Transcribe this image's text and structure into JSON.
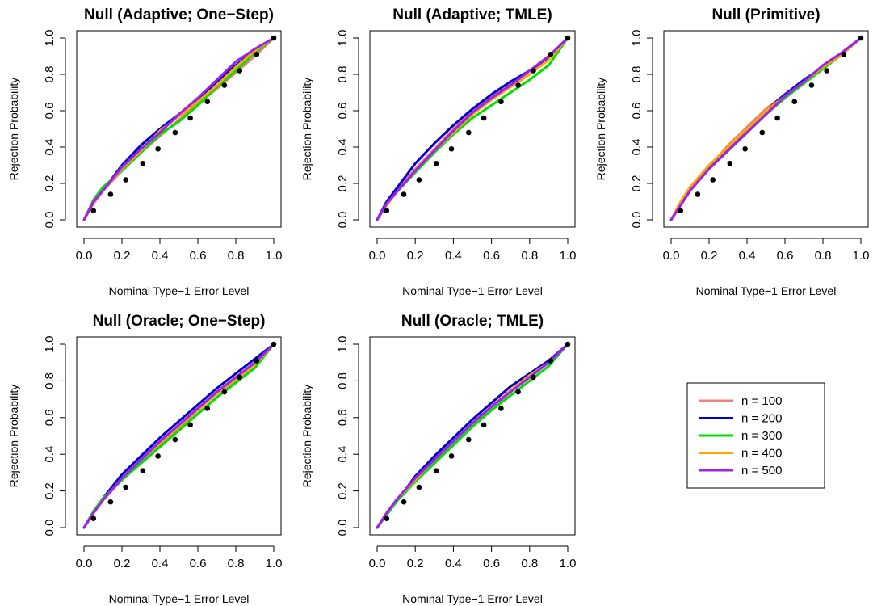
{
  "figure": {
    "title": "",
    "legend": {
      "placement": "bottom-right (empty sixth panel)",
      "entries": [
        {
          "label": "n = 100",
          "color": "#F08080"
        },
        {
          "label": "n = 200",
          "color": "#0000CD"
        },
        {
          "label": "n = 300",
          "color": "#00E000"
        },
        {
          "label": "n = 400",
          "color": "#FFA500"
        },
        {
          "label": "n = 500",
          "color": "#A020F0"
        }
      ]
    },
    "reference_points": {
      "x": [
        0.05,
        0.14,
        0.22,
        0.31,
        0.39,
        0.48,
        0.56,
        0.65,
        0.74,
        0.82,
        0.91,
        1.0
      ],
      "y": [
        0.05,
        0.14,
        0.22,
        0.31,
        0.39,
        0.48,
        0.56,
        0.65,
        0.74,
        0.82,
        0.91,
        1.0
      ],
      "color": "#000000"
    }
  },
  "chart_data": [
    {
      "type": "line",
      "title": "Null (Adaptive; One−Step)",
      "xlabel": "Nominal Type−1 Error Level",
      "ylabel": "Rejection Probability",
      "xlim": [
        0,
        1
      ],
      "ylim": [
        0,
        1
      ],
      "xticks": [
        "0.0",
        "0.2",
        "0.4",
        "0.6",
        "0.8",
        "1.0"
      ],
      "yticks": [
        "0.0",
        "0.2",
        "0.4",
        "0.6",
        "0.8",
        "1.0"
      ],
      "grid": false,
      "x": [
        0,
        0.05,
        0.1,
        0.2,
        0.3,
        0.4,
        0.5,
        0.6,
        0.7,
        0.8,
        0.9,
        1.0
      ],
      "series": [
        {
          "name": "n = 100",
          "color": "#F08080",
          "values": [
            0,
            0.09,
            0.16,
            0.27,
            0.37,
            0.46,
            0.55,
            0.64,
            0.72,
            0.81,
            0.9,
            1.0
          ]
        },
        {
          "name": "n = 200",
          "color": "#0000CD",
          "values": [
            0,
            0.1,
            0.16,
            0.3,
            0.41,
            0.5,
            0.58,
            0.66,
            0.76,
            0.85,
            0.93,
            1.0
          ]
        },
        {
          "name": "n = 300",
          "color": "#00E000",
          "values": [
            0,
            0.11,
            0.18,
            0.27,
            0.37,
            0.47,
            0.54,
            0.63,
            0.73,
            0.82,
            0.92,
            1.0
          ]
        },
        {
          "name": "n = 400",
          "color": "#FFA500",
          "values": [
            0,
            0.1,
            0.16,
            0.28,
            0.38,
            0.49,
            0.57,
            0.65,
            0.74,
            0.84,
            0.93,
            1.0
          ]
        },
        {
          "name": "n = 500",
          "color": "#A020F0",
          "values": [
            0,
            0.1,
            0.16,
            0.29,
            0.39,
            0.48,
            0.58,
            0.67,
            0.77,
            0.87,
            0.94,
            1.0
          ]
        }
      ]
    },
    {
      "type": "line",
      "title": "Null (Adaptive; TMLE)",
      "xlabel": "Nominal Type−1 Error Level",
      "ylabel": "Rejection Probability",
      "xlim": [
        0,
        1
      ],
      "ylim": [
        0,
        1
      ],
      "xticks": [
        "0.0",
        "0.2",
        "0.4",
        "0.6",
        "0.8",
        "1.0"
      ],
      "yticks": [
        "0.0",
        "0.2",
        "0.4",
        "0.6",
        "0.8",
        "1.0"
      ],
      "grid": false,
      "x": [
        0,
        0.05,
        0.1,
        0.2,
        0.3,
        0.4,
        0.5,
        0.6,
        0.7,
        0.8,
        0.9,
        1.0
      ],
      "series": [
        {
          "name": "n = 100",
          "color": "#F08080",
          "values": [
            0,
            0.09,
            0.16,
            0.28,
            0.39,
            0.5,
            0.6,
            0.68,
            0.75,
            0.82,
            0.89,
            1.0
          ]
        },
        {
          "name": "n = 200",
          "color": "#0000CD",
          "values": [
            0,
            0.1,
            0.17,
            0.31,
            0.42,
            0.52,
            0.61,
            0.69,
            0.76,
            0.82,
            0.89,
            1.0
          ]
        },
        {
          "name": "n = 300",
          "color": "#00E000",
          "values": [
            0,
            0.08,
            0.15,
            0.26,
            0.37,
            0.47,
            0.56,
            0.63,
            0.7,
            0.77,
            0.85,
            1.0
          ]
        },
        {
          "name": "n = 400",
          "color": "#FFA500",
          "values": [
            0,
            0.08,
            0.15,
            0.27,
            0.38,
            0.48,
            0.58,
            0.66,
            0.73,
            0.8,
            0.88,
            1.0
          ]
        },
        {
          "name": "n = 500",
          "color": "#A020F0",
          "values": [
            0,
            0.09,
            0.15,
            0.27,
            0.38,
            0.49,
            0.59,
            0.67,
            0.74,
            0.82,
            0.9,
            1.0
          ]
        }
      ]
    },
    {
      "type": "line",
      "title": "Null (Primitive)",
      "xlabel": "Nominal Type−1 Error Level",
      "ylabel": "Rejection Probability",
      "xlim": [
        0,
        1
      ],
      "ylim": [
        0,
        1
      ],
      "xticks": [
        "0.0",
        "0.2",
        "0.4",
        "0.6",
        "0.8",
        "1.0"
      ],
      "yticks": [
        "0.0",
        "0.2",
        "0.4",
        "0.6",
        "0.8",
        "1.0"
      ],
      "grid": false,
      "x": [
        0,
        0.05,
        0.1,
        0.2,
        0.3,
        0.4,
        0.5,
        0.6,
        0.7,
        0.8,
        0.9,
        1.0
      ],
      "series": [
        {
          "name": "n = 100",
          "color": "#F08080",
          "values": [
            0,
            0.09,
            0.17,
            0.29,
            0.41,
            0.51,
            0.61,
            0.69,
            0.77,
            0.84,
            0.91,
            1.0
          ]
        },
        {
          "name": "n = 200",
          "color": "#0000CD",
          "values": [
            0,
            0.09,
            0.17,
            0.29,
            0.39,
            0.5,
            0.6,
            0.69,
            0.77,
            0.84,
            0.91,
            1.0
          ]
        },
        {
          "name": "n = 300",
          "color": "#00E000",
          "values": [
            0,
            0.08,
            0.16,
            0.28,
            0.38,
            0.48,
            0.58,
            0.67,
            0.75,
            0.83,
            0.91,
            1.0
          ]
        },
        {
          "name": "n = 400",
          "color": "#FFA500",
          "values": [
            0,
            0.1,
            0.18,
            0.3,
            0.4,
            0.5,
            0.6,
            0.68,
            0.76,
            0.84,
            0.91,
            1.0
          ]
        },
        {
          "name": "n = 500",
          "color": "#A020F0",
          "values": [
            0,
            0.08,
            0.16,
            0.28,
            0.38,
            0.48,
            0.58,
            0.68,
            0.76,
            0.85,
            0.92,
            1.0
          ]
        }
      ]
    },
    {
      "type": "line",
      "title": "Null (Oracle; One−Step)",
      "xlabel": "Nominal Type−1 Error Level",
      "ylabel": "Rejection Probability",
      "xlim": [
        0,
        1
      ],
      "ylim": [
        0,
        1
      ],
      "xticks": [
        "0.0",
        "0.2",
        "0.4",
        "0.6",
        "0.8",
        "1.0"
      ],
      "yticks": [
        "0.0",
        "0.2",
        "0.4",
        "0.6",
        "0.8",
        "1.0"
      ],
      "grid": false,
      "x": [
        0,
        0.05,
        0.1,
        0.2,
        0.3,
        0.4,
        0.5,
        0.6,
        0.7,
        0.8,
        0.9,
        1.0
      ],
      "series": [
        {
          "name": "n = 100",
          "color": "#F08080",
          "values": [
            0,
            0.08,
            0.15,
            0.26,
            0.36,
            0.45,
            0.54,
            0.62,
            0.71,
            0.8,
            0.89,
            1.0
          ]
        },
        {
          "name": "n = 200",
          "color": "#0000CD",
          "values": [
            0,
            0.08,
            0.16,
            0.29,
            0.39,
            0.49,
            0.58,
            0.67,
            0.76,
            0.84,
            0.92,
            1.0
          ]
        },
        {
          "name": "n = 300",
          "color": "#00E000",
          "values": [
            0,
            0.09,
            0.16,
            0.26,
            0.35,
            0.44,
            0.53,
            0.62,
            0.71,
            0.79,
            0.87,
            1.0
          ]
        },
        {
          "name": "n = 400",
          "color": "#FFA500",
          "values": [
            0,
            0.08,
            0.15,
            0.27,
            0.37,
            0.46,
            0.55,
            0.64,
            0.73,
            0.81,
            0.89,
            1.0
          ]
        },
        {
          "name": "n = 500",
          "color": "#A020F0",
          "values": [
            0,
            0.08,
            0.15,
            0.27,
            0.37,
            0.47,
            0.56,
            0.65,
            0.74,
            0.82,
            0.9,
            1.0
          ]
        }
      ]
    },
    {
      "type": "line",
      "title": "Null (Oracle; TMLE)",
      "xlabel": "Nominal Type−1 Error Level",
      "ylabel": "Rejection Probability",
      "xlim": [
        0,
        1
      ],
      "ylim": [
        0,
        1
      ],
      "xticks": [
        "0.0",
        "0.2",
        "0.4",
        "0.6",
        "0.8",
        "1.0"
      ],
      "yticks": [
        "0.0",
        "0.2",
        "0.4",
        "0.6",
        "0.8",
        "1.0"
      ],
      "grid": false,
      "x": [
        0,
        0.05,
        0.1,
        0.2,
        0.3,
        0.4,
        0.5,
        0.6,
        0.7,
        0.8,
        0.9,
        1.0
      ],
      "series": [
        {
          "name": "n = 100",
          "color": "#F08080",
          "values": [
            0,
            0.08,
            0.15,
            0.26,
            0.36,
            0.46,
            0.56,
            0.65,
            0.74,
            0.82,
            0.9,
            1.0
          ]
        },
        {
          "name": "n = 200",
          "color": "#0000CD",
          "values": [
            0,
            0.07,
            0.14,
            0.28,
            0.39,
            0.49,
            0.59,
            0.68,
            0.77,
            0.84,
            0.91,
            1.0
          ]
        },
        {
          "name": "n = 300",
          "color": "#00E000",
          "values": [
            0,
            0.07,
            0.14,
            0.25,
            0.35,
            0.45,
            0.55,
            0.64,
            0.72,
            0.8,
            0.88,
            1.0
          ]
        },
        {
          "name": "n = 400",
          "color": "#FFA500",
          "values": [
            0,
            0.08,
            0.15,
            0.26,
            0.37,
            0.47,
            0.57,
            0.66,
            0.75,
            0.83,
            0.9,
            1.0
          ]
        },
        {
          "name": "n = 500",
          "color": "#A020F0",
          "values": [
            0,
            0.08,
            0.15,
            0.27,
            0.37,
            0.47,
            0.57,
            0.66,
            0.74,
            0.82,
            0.9,
            1.0
          ]
        }
      ]
    }
  ]
}
